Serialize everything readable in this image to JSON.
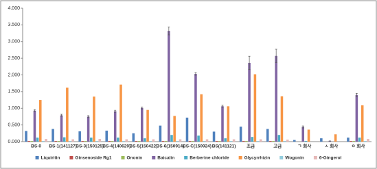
{
  "chart_data": {
    "type": "bar",
    "categories": [
      "BS-0",
      "BS-1(141127)",
      "BS-3(150125)",
      "BS-4(140629)",
      "BS-5(150422)",
      "BS-6(150914)",
      "BS-C(150924)",
      "BS(141121)",
      "조금",
      "고금",
      "ㄱ 회사",
      "ㅅ 회사",
      "ㅇ 회사"
    ],
    "series": [
      {
        "name": "Liquiritin",
        "color": "#4f81bd",
        "values": [
          0.32,
          0.38,
          0.31,
          0.33,
          0.25,
          0.48,
          0.72,
          0.3,
          0.45,
          0.38,
          0.05,
          0.1,
          0.12
        ]
      },
      {
        "name": "Ginsenoside Rg1",
        "color": "#c0504d",
        "values": [
          0.02,
          0.02,
          0.02,
          0.02,
          0.02,
          0.02,
          0.02,
          0.02,
          0.02,
          0.02,
          0,
          0,
          0.02
        ]
      },
      {
        "name": "Ononin",
        "color": "#9bbb59",
        "values": [
          0.02,
          0.02,
          0.02,
          0.02,
          0.02,
          0.02,
          0.02,
          0.02,
          0.02,
          0.02,
          0,
          0,
          0.02
        ]
      },
      {
        "name": "Baicalin",
        "color": "#8064a2",
        "values": [
          0.93,
          0.79,
          0.75,
          0.91,
          1.01,
          3.32,
          2.03,
          1.06,
          2.36,
          2.57,
          0.44,
          0.02,
          1.4
        ],
        "errors": [
          0.03,
          0.03,
          0.03,
          0.03,
          0.03,
          0.12,
          0.04,
          0.03,
          0.2,
          0.2,
          0.03,
          0,
          0.05
        ]
      },
      {
        "name": "Berberine chloride",
        "color": "#4bacc6",
        "values": [
          0.12,
          0.13,
          0.12,
          0.12,
          0.1,
          0.2,
          0.18,
          0.1,
          0.14,
          0.2,
          0.02,
          0,
          0.12
        ]
      },
      {
        "name": "Glycyrrhizin",
        "color": "#f79646",
        "values": [
          1.25,
          1.62,
          1.35,
          1.71,
          0.95,
          0.77,
          1.42,
          1.06,
          2.02,
          1.36,
          0.36,
          0.22,
          1.09
        ]
      },
      {
        "name": "Wogonin",
        "color": "#93cddd",
        "values": [
          0.02,
          0.02,
          0.02,
          0.02,
          0.02,
          0.02,
          0.02,
          0.02,
          0.02,
          0.02,
          0,
          0,
          0.02
        ]
      },
      {
        "name": "6-Gingerol",
        "color": "#e6b9b8",
        "values": [
          0.08,
          0.07,
          0.08,
          0.07,
          0.07,
          0.07,
          0.07,
          0.07,
          0.07,
          0.06,
          0,
          0,
          0.08
        ]
      }
    ],
    "ylim": [
      0,
      4
    ],
    "yticks": [
      {
        "value": 0,
        "label": "0.000"
      },
      {
        "value": 0.5,
        "label": "0.500"
      },
      {
        "value": 1,
        "label": "1.000"
      },
      {
        "value": 1.5,
        "label": "1.500"
      },
      {
        "value": 2,
        "label": "2.000"
      },
      {
        "value": 2.5,
        "label": "2.500"
      },
      {
        "value": 3,
        "label": "3.000"
      },
      {
        "value": 3.5,
        "label": "3.500"
      },
      {
        "value": 4,
        "label": "4.000"
      }
    ],
    "legend": "bottom"
  }
}
